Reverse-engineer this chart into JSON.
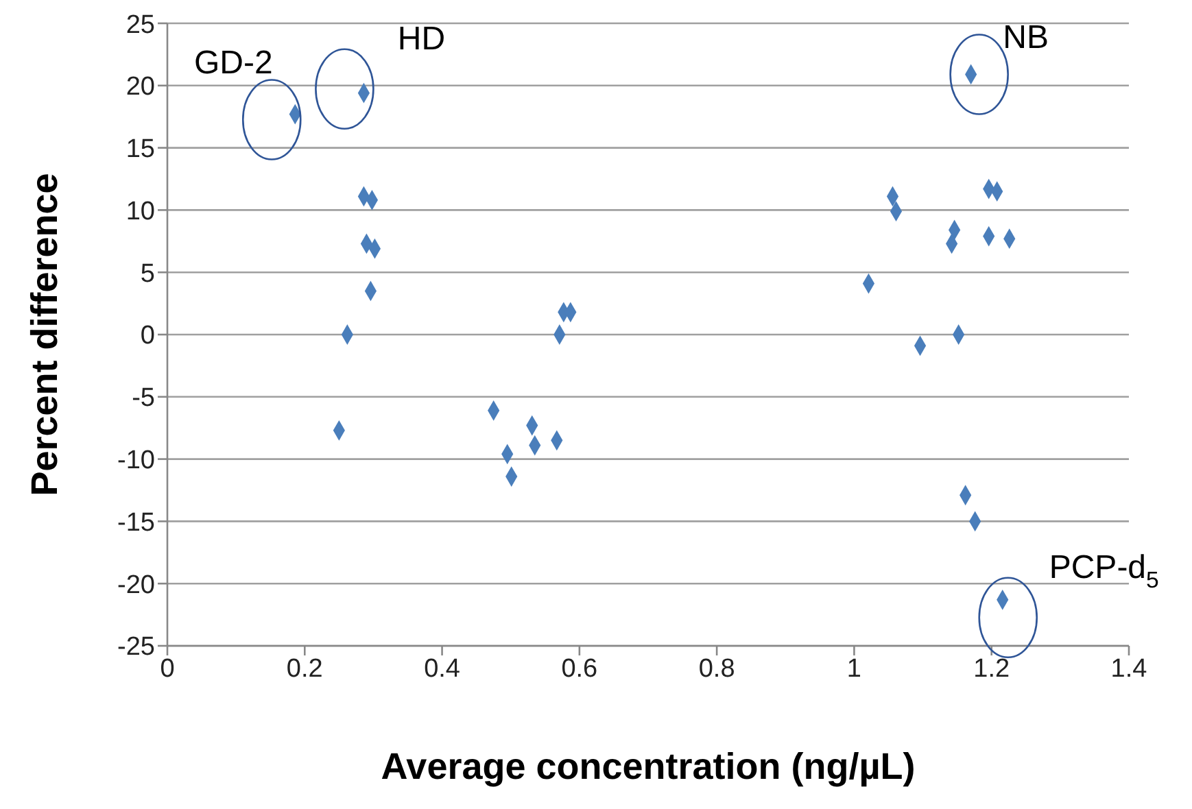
{
  "chart_data": {
    "type": "scatter",
    "xlabel": "Average concentration (ng/µL)",
    "ylabel": "Percent difference",
    "x": [
      0.186,
      0.286,
      0.286,
      0.298,
      0.29,
      0.302,
      0.296,
      0.262,
      0.25,
      0.577,
      0.587,
      0.571,
      0.475,
      0.531,
      0.567,
      0.535,
      0.495,
      0.501,
      1.17,
      1.196,
      1.208,
      1.056,
      1.061,
      1.146,
      1.142,
      1.196,
      1.226,
      1.021,
      1.152,
      1.096,
      1.162,
      1.176,
      1.216
    ],
    "series": [
      {
        "color": "#4a7ebb",
        "values": [
          17.7,
          19.4,
          11.1,
          10.8,
          7.3,
          6.9,
          3.5,
          0,
          -7.7,
          1.8,
          1.8,
          0,
          -6.1,
          -7.3,
          -8.5,
          -8.9,
          -9.6,
          -11.4,
          20.9,
          11.7,
          11.5,
          11.1,
          9.9,
          8.4,
          7.3,
          7.9,
          7.7,
          4.1,
          0,
          -0.9,
          -12.9,
          -15.0,
          -21.3
        ]
      }
    ],
    "xlim": [
      0,
      1.4
    ],
    "xticks": [
      0,
      0.2,
      0.4,
      0.6,
      0.8,
      1,
      1.2,
      1.4
    ],
    "ylim": [
      -25,
      25
    ],
    "yticks": [
      -25,
      -20,
      -15,
      -10,
      -5,
      0,
      5,
      10,
      15,
      20,
      25
    ],
    "grid": "y",
    "marker": "diamond",
    "annotations": [
      {
        "text": "GD-2",
        "x": 0.186,
        "y": 17.7
      },
      {
        "text": "HD",
        "x": 0.286,
        "y": 19.4
      },
      {
        "text": "NB",
        "x": 1.17,
        "y": 20.9
      },
      {
        "text": "PCP-d$_{5}$",
        "x": 1.216,
        "y": -21.3
      }
    ]
  }
}
